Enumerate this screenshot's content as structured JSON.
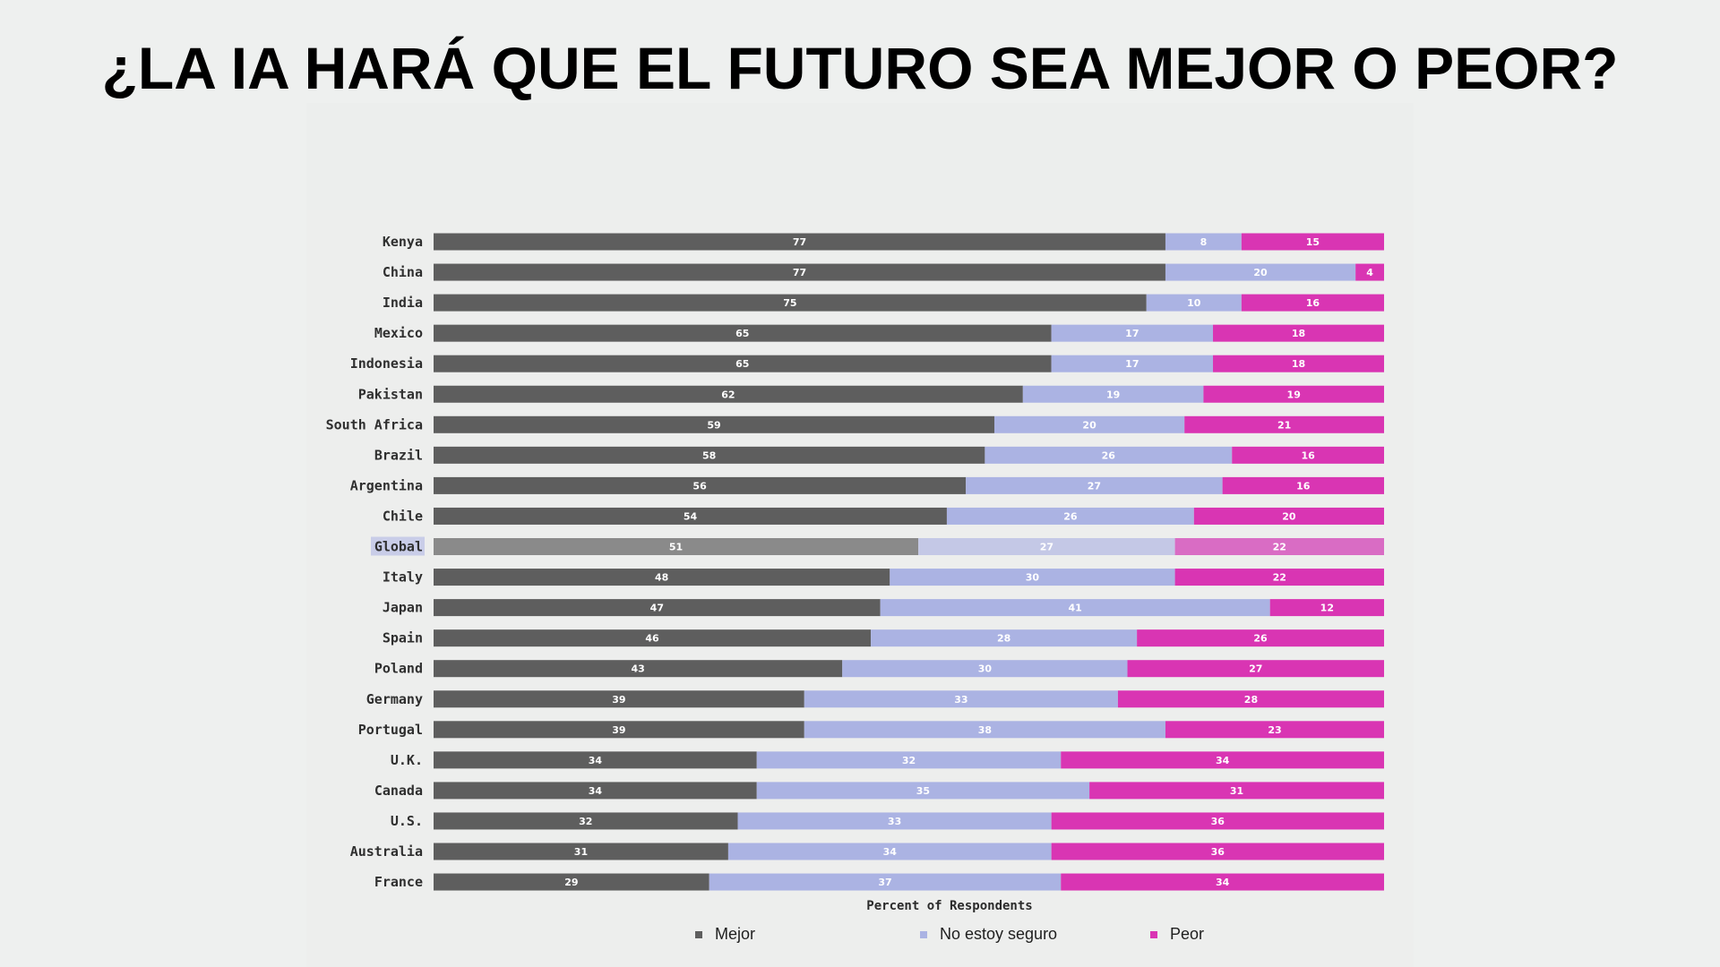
{
  "page": {
    "title": "¿LA IA HARÁ QUE EL FUTURO SEA MEJOR O PEOR?"
  },
  "colors": {
    "mejor": "#5e5e5e",
    "no_estoy_seguro": "#abb3e3",
    "peor": "#d935b3",
    "mejor_global": "#8a8a8a",
    "no_estoy_seguro_global": "#c4c8e6",
    "peor_global": "#d96cc4",
    "global_label_bg": "#c9cde8"
  },
  "chart_data": {
    "type": "bar",
    "orientation": "horizontal",
    "stacked": true,
    "title": "¿LA IA HARÁ QUE EL FUTURO SEA MEJOR O PEOR?",
    "xlabel": "Percent of Respondents",
    "ylabel": "",
    "xlim": [
      0,
      100
    ],
    "grid": false,
    "legend_position": "bottom",
    "highlighted_category": "Global",
    "categories": [
      "Kenya",
      "China",
      "India",
      "Mexico",
      "Indonesia",
      "Pakistan",
      "South Africa",
      "Brazil",
      "Argentina",
      "Chile",
      "Global",
      "Italy",
      "Japan",
      "Spain",
      "Poland",
      "Germany",
      "Portugal",
      "U.K.",
      "Canada",
      "U.S.",
      "Australia",
      "France"
    ],
    "series": [
      {
        "name": "Mejor",
        "values": [
          77,
          77,
          75,
          65,
          65,
          62,
          59,
          58,
          56,
          54,
          51,
          48,
          47,
          46,
          43,
          39,
          39,
          34,
          34,
          32,
          31,
          29
        ]
      },
      {
        "name": "No estoy seguro",
        "values": [
          8,
          20,
          10,
          17,
          17,
          19,
          20,
          26,
          27,
          26,
          27,
          30,
          41,
          28,
          30,
          33,
          38,
          32,
          35,
          33,
          34,
          37
        ]
      },
      {
        "name": "Peor",
        "values": [
          15,
          4,
          16,
          18,
          18,
          19,
          21,
          16,
          16,
          20,
          22,
          22,
          12,
          26,
          27,
          28,
          23,
          34,
          31,
          36,
          36,
          34
        ]
      }
    ]
  }
}
